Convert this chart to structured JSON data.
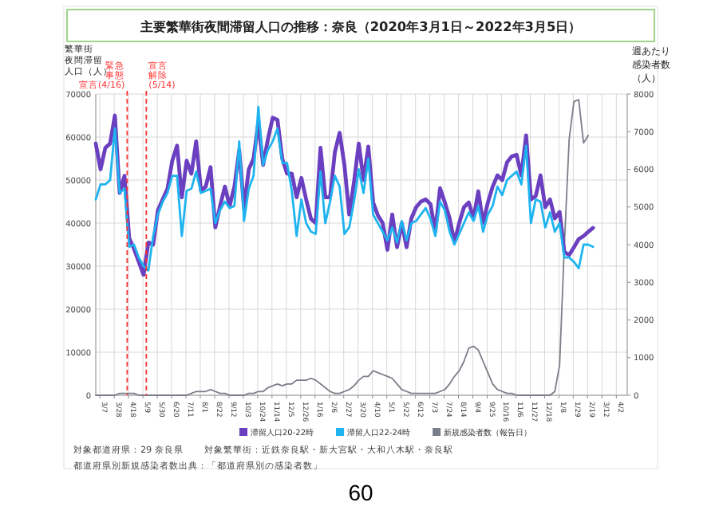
{
  "chart_data": {
    "type": "line",
    "title": "主要繁華街夜間滞留人口の推移：奈良（2020年3月1日～2022年3月5日）",
    "ylabel": "繁華街夜間滞留人口（人）",
    "y2label": "週あたり感染者数（人）",
    "x": [
      "2020-03-01",
      "2020-03-08",
      "2020-03-15",
      "2020-03-22",
      "2020-03-29",
      "2020-04-05",
      "2020-04-12",
      "2020-04-19",
      "2020-04-26",
      "2020-05-03",
      "2020-05-10",
      "2020-05-17",
      "2020-05-24",
      "2020-05-31",
      "2020-06-07",
      "2020-06-14",
      "2020-06-21",
      "2020-06-28",
      "2020-07-05",
      "2020-07-12",
      "2020-07-19",
      "2020-07-26",
      "2020-08-02",
      "2020-08-09",
      "2020-08-16",
      "2020-08-23",
      "2020-08-30",
      "2020-09-06",
      "2020-09-13",
      "2020-09-20",
      "2020-09-27",
      "2020-10-04",
      "2020-10-11",
      "2020-10-18",
      "2020-10-25",
      "2020-11-01",
      "2020-11-08",
      "2020-11-15",
      "2020-11-22",
      "2020-11-29",
      "2020-12-06",
      "2020-12-13",
      "2020-12-20",
      "2020-12-27",
      "2021-01-03",
      "2021-01-10",
      "2021-01-17",
      "2021-01-24",
      "2021-01-31",
      "2021-02-07",
      "2021-02-14",
      "2021-02-21",
      "2021-02-28",
      "2021-03-07",
      "2021-03-14",
      "2021-03-21",
      "2021-03-28",
      "2021-04-04",
      "2021-04-11",
      "2021-04-18",
      "2021-04-25",
      "2021-05-02",
      "2021-05-09",
      "2021-05-16",
      "2021-05-23",
      "2021-05-30",
      "2021-06-06",
      "2021-06-13",
      "2021-06-20",
      "2021-06-27",
      "2021-07-04",
      "2021-07-11",
      "2021-07-18",
      "2021-07-25",
      "2021-08-01",
      "2021-08-08",
      "2021-08-15",
      "2021-08-22",
      "2021-08-29",
      "2021-09-05",
      "2021-09-12",
      "2021-09-19",
      "2021-09-26",
      "2021-10-03",
      "2021-10-10",
      "2021-10-17",
      "2021-10-24",
      "2021-10-31",
      "2021-11-07",
      "2021-11-14",
      "2021-11-21",
      "2021-11-28",
      "2021-12-05",
      "2021-12-12",
      "2021-12-19",
      "2021-12-26",
      "2022-01-02",
      "2022-01-09",
      "2022-01-16",
      "2022-01-23",
      "2022-01-30",
      "2022-02-06",
      "2022-02-13",
      "2022-02-20",
      "2022-02-27"
    ],
    "series": [
      {
        "name": "滞留人口20-22時",
        "color": "#6a3fc0",
        "values": [
          58500,
          52500,
          57500,
          58500,
          65000,
          47000,
          51000,
          36500,
          34000,
          31000,
          28000,
          35500,
          35000,
          43000,
          45500,
          48000,
          54500,
          58000,
          46000,
          54500,
          51500,
          59000,
          47500,
          48500,
          53000,
          39000,
          44000,
          48500,
          44000,
          48500,
          57000,
          43500,
          52500,
          55000,
          63500,
          53500,
          59500,
          64500,
          64000,
          55000,
          51500,
          51500,
          46000,
          50500,
          45500,
          41000,
          40000,
          57500,
          46000,
          46000,
          56500,
          61000,
          53500,
          42000,
          49500,
          58500,
          50000,
          57800,
          44800,
          41800,
          40000,
          33800,
          42000,
          34400,
          40000,
          34400,
          41100,
          43700,
          45000,
          45500,
          44400,
          38000,
          48100,
          44800,
          41100,
          35600,
          40000,
          43700,
          44800,
          41100,
          47400,
          40000,
          44800,
          48500,
          51100,
          50000,
          54100,
          55500,
          55900,
          51100,
          60400,
          45500,
          46300,
          51100,
          43700,
          45500,
          41100,
          42600,
          33300,
          32600,
          34400,
          36300,
          37000,
          38000,
          38900
        ]
      },
      {
        "name": "滞留人口22-24時",
        "color": "#1eb4f0",
        "values": [
          45500,
          49000,
          49000,
          50000,
          62000,
          47000,
          48000,
          34500,
          35000,
          32000,
          30000,
          29000,
          37000,
          42000,
          45000,
          47000,
          51000,
          51000,
          37000,
          47500,
          48000,
          52000,
          47000,
          47500,
          48000,
          40000,
          43000,
          45000,
          43500,
          44000,
          59000,
          40500,
          48000,
          51000,
          67000,
          53500,
          57000,
          59000,
          62000,
          54000,
          54000,
          47500,
          37000,
          45500,
          40000,
          38000,
          37500,
          52000,
          40000,
          45000,
          51000,
          48500,
          37500,
          39000,
          45000,
          52500,
          47000,
          55000,
          42000,
          40000,
          38000,
          36000,
          39000,
          35500,
          40500,
          36000,
          40000,
          40500,
          42000,
          43500,
          41000,
          37000,
          45000,
          43000,
          38000,
          35000,
          37500,
          40000,
          42500,
          40500,
          44000,
          38000,
          42000,
          44000,
          48500,
          46500,
          50000,
          51000,
          52000,
          49000,
          58000,
          40000,
          45500,
          45000,
          39000,
          42500,
          38000,
          40000,
          32000,
          32000,
          31000,
          29500,
          35000,
          35000,
          34500
        ]
      },
      {
        "name": "新規感染者数（報告日）",
        "color": "#7a7e88",
        "axis": "y2",
        "values": [
          0,
          0,
          0,
          0,
          0,
          50,
          50,
          50,
          50,
          0,
          0,
          0,
          0,
          0,
          0,
          0,
          0,
          0,
          0,
          0,
          50,
          100,
          100,
          100,
          150,
          100,
          50,
          50,
          0,
          0,
          0,
          0,
          50,
          50,
          100,
          100,
          200,
          250,
          300,
          250,
          300,
          300,
          400,
          400,
          400,
          450,
          400,
          300,
          200,
          100,
          50,
          50,
          100,
          150,
          250,
          400,
          500,
          500,
          650,
          600,
          550,
          500,
          450,
          300,
          150,
          100,
          50,
          50,
          50,
          50,
          50,
          50,
          100,
          150,
          300,
          500,
          650,
          900,
          1250,
          1300,
          1200,
          900,
          600,
          300,
          150,
          100,
          50,
          50,
          0,
          0,
          0,
          0,
          0,
          0,
          0,
          0,
          100,
          800,
          4000,
          6800,
          7800,
          7850,
          6700,
          6900,
          null
        ]
      }
    ],
    "xlim": [
      "2020-03-01",
      "2022-04-18"
    ],
    "xticks": [
      {
        "value": "2020-03-07",
        "label": "3/7"
      },
      {
        "value": "2020-03-28",
        "label": "3/28"
      },
      {
        "value": "2020-04-18",
        "label": "4/18"
      },
      {
        "value": "2020-05-09",
        "label": "5/9"
      },
      {
        "value": "2020-05-30",
        "label": "5/30"
      },
      {
        "value": "2020-06-20",
        "label": "6/20"
      },
      {
        "value": "2020-07-11",
        "label": "7/11"
      },
      {
        "value": "2020-08-01",
        "label": "8/1"
      },
      {
        "value": "2020-08-22",
        "label": "8/22"
      },
      {
        "value": "2020-09-12",
        "label": "9/12"
      },
      {
        "value": "2020-10-03",
        "label": "10/3"
      },
      {
        "value": "2020-10-24",
        "label": "10/24"
      },
      {
        "value": "2020-11-14",
        "label": "11/14"
      },
      {
        "value": "2020-12-05",
        "label": "12/5"
      },
      {
        "value": "2020-12-26",
        "label": "12/26"
      },
      {
        "value": "2021-01-16",
        "label": "1/16"
      },
      {
        "value": "2021-02-06",
        "label": "2/6"
      },
      {
        "value": "2021-02-27",
        "label": "2/27"
      },
      {
        "value": "2021-03-20",
        "label": "3/20"
      },
      {
        "value": "2021-04-10",
        "label": "4/10"
      },
      {
        "value": "2021-05-01",
        "label": "5/1"
      },
      {
        "value": "2021-05-22",
        "label": "5/22"
      },
      {
        "value": "2021-06-12",
        "label": "6/12"
      },
      {
        "value": "2021-07-03",
        "label": "7/3"
      },
      {
        "value": "2021-07-24",
        "label": "7/24"
      },
      {
        "value": "2021-08-14",
        "label": "8/14"
      },
      {
        "value": "2021-09-04",
        "label": "9/4"
      },
      {
        "value": "2021-09-25",
        "label": "9/25"
      },
      {
        "value": "2021-10-16",
        "label": "10/16"
      },
      {
        "value": "2021-11-06",
        "label": "11/6"
      },
      {
        "value": "2021-11-27",
        "label": "11/27"
      },
      {
        "value": "2021-12-18",
        "label": "12/18"
      },
      {
        "value": "2022-01-08",
        "label": "1/8"
      },
      {
        "value": "2022-01-29",
        "label": "1/29"
      },
      {
        "value": "2022-02-19",
        "label": "2/19"
      },
      {
        "value": "2022-03-12",
        "label": "3/12"
      },
      {
        "value": "2022-04-02",
        "label": "4/2"
      }
    ],
    "ylim": [
      0,
      70000
    ],
    "yticks": [
      0,
      10000,
      20000,
      30000,
      40000,
      50000,
      60000,
      70000
    ],
    "y2lim": [
      0,
      8000
    ],
    "y2ticks": [
      0,
      1000,
      2000,
      3000,
      4000,
      5000,
      6000,
      7000,
      8000
    ],
    "ref_lines": [
      {
        "axis": "x",
        "value": "2020-04-16",
        "label": "緊急事態宣言(4/16)",
        "color": "#ff3030",
        "line_style": "dashed"
      },
      {
        "axis": "x",
        "value": "2020-05-14",
        "label": "宣言解除(5/14)",
        "color": "#ff3030",
        "line_style": "dashed"
      }
    ],
    "grid": true,
    "legend": "bottom",
    "marker": "none",
    "line_style": "solid",
    "annotations": [
      "対象都道府県：29 奈良県",
      "対象繁華街：近鉄奈良駅・新大宮駅・大和八木駅・奈良駅",
      "都道府県別新規感染者数出典：「都道府県別の感染者数」",
      "60"
    ]
  }
}
